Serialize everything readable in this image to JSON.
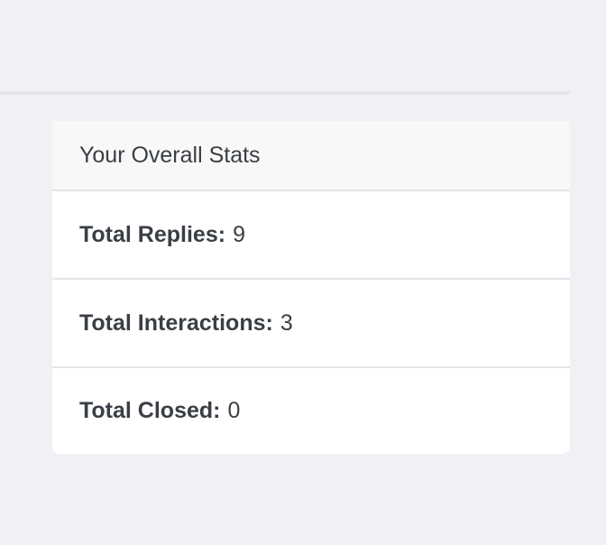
{
  "stats_card": {
    "title": "Your Overall Stats",
    "items": [
      {
        "label": "Total Replies:",
        "value": "9"
      },
      {
        "label": "Total Interactions:",
        "value": "3"
      },
      {
        "label": "Total Closed:",
        "value": "0"
      }
    ]
  }
}
